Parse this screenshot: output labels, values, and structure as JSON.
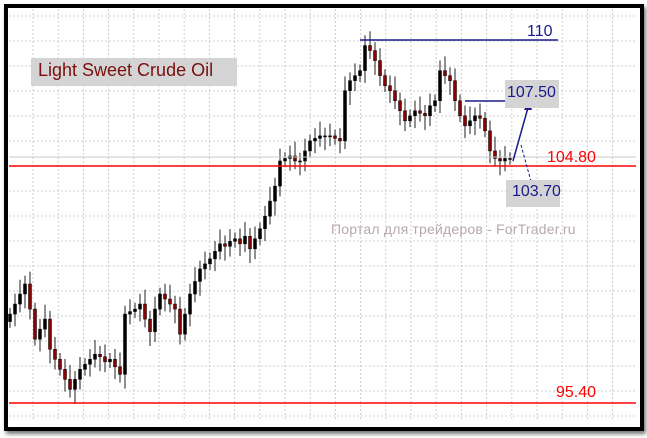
{
  "chart_data": {
    "type": "candlestick",
    "title": "Light Sweet Crude Oil",
    "watermark": "Портал для трейдеров - ForTrader.ru",
    "ylim": [
      94.9,
      111.2
    ],
    "grid": true,
    "close": [
      98.9,
      99.3,
      99.7,
      100.1,
      99.1,
      97.9,
      98.3,
      98.7,
      97.5,
      97.1,
      96.7,
      96.3,
      95.9,
      96.3,
      96.7,
      96.9,
      97.1,
      97.3,
      97.2,
      97.0,
      97.1,
      96.8,
      96.5,
      98.9,
      99.0,
      99.1,
      99.3,
      98.7,
      98.2,
      99.1,
      99.7,
      99.5,
      99.3,
      99.1,
      98.1,
      98.9,
      99.7,
      100.2,
      100.7,
      100.9,
      101.1,
      101.4,
      101.7,
      101.6,
      101.8,
      101.9,
      101.7,
      102.0,
      101.5,
      101.9,
      102.3,
      102.8,
      103.4,
      104.0,
      105.0,
      105.1,
      105.2,
      105.0,
      105.0,
      105.4,
      105.8,
      105.9,
      106.0,
      106.0,
      106.0,
      105.9,
      105.8,
      107.8,
      108.2,
      108.4,
      108.6,
      109.6,
      109.4,
      109.0,
      108.4,
      108.0,
      107.8,
      107.4,
      107.0,
      106.6,
      106.8,
      107.0,
      106.9,
      106.8,
      107.2,
      107.4,
      108.6,
      108.4,
      108.2,
      107.4,
      106.8,
      106.4,
      106.6,
      106.8,
      106.7,
      106.2,
      105.4,
      105.1,
      105.0,
      105.1,
      105.1
    ],
    "levels": [
      {
        "value": 110,
        "label": "110",
        "color": "#1a1a8c"
      },
      {
        "value": 107.5,
        "label": "107.50",
        "color": "#1a1a8c"
      },
      {
        "value": 104.8,
        "label": "104.80",
        "color": "#ff0000"
      },
      {
        "value": 103.7,
        "label": "103.70",
        "color": "#1a1a8c"
      },
      {
        "value": 95.4,
        "label": "95.40",
        "color": "#ff0000"
      }
    ],
    "colors": {
      "bull": "#000000",
      "bear": "#8b0000",
      "support": "#ff0000",
      "target": "#1a1a8c"
    }
  }
}
